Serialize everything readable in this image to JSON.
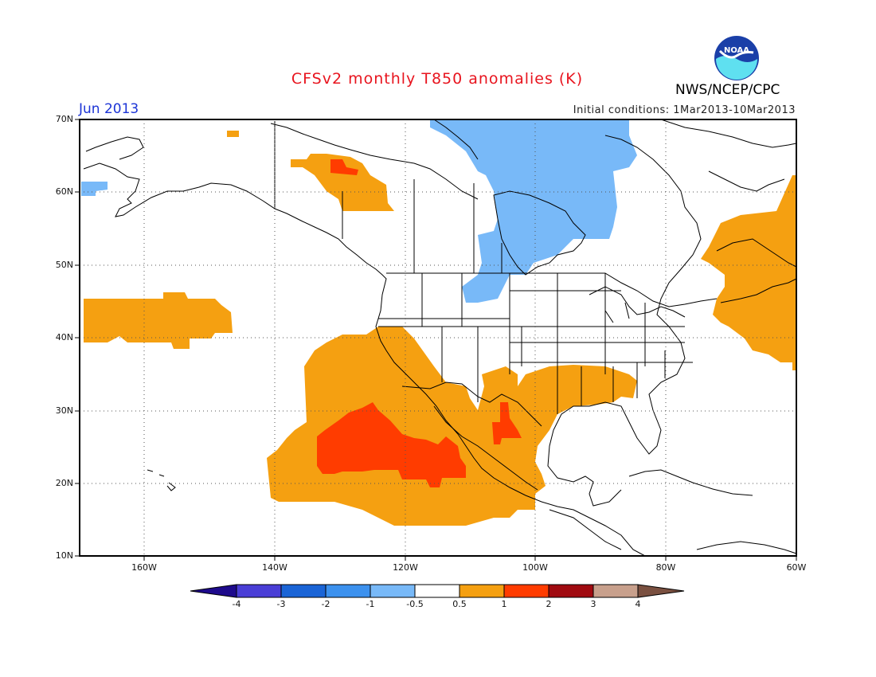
{
  "header": {
    "title": "CFSv2 monthly T850 anomalies (K)",
    "period": "Jun 2013",
    "initial_conditions": "Initial conditions: 1Mar2013-10Mar2013",
    "agency": "NWS/NCEP/CPC",
    "logo_text": "NOAA"
  },
  "map": {
    "lat_labels": [
      "70N",
      "60N",
      "50N",
      "40N",
      "30N",
      "20N",
      "10N"
    ],
    "lon_labels": [
      "160W",
      "140W",
      "120W",
      "100W",
      "80W",
      "60W"
    ]
  },
  "colorbar": {
    "labels": [
      "-4",
      "-3",
      "-2",
      "-1",
      "-0.5",
      "0.5",
      "1",
      "2",
      "3",
      "4"
    ],
    "colors": [
      "#1e0a8c",
      "#4a3ed6",
      "#1a64d6",
      "#3c91ee",
      "#78b9f8",
      "#ffffff",
      "#f5a011",
      "#ff3c00",
      "#a00a10",
      "#c8a08c",
      "#7a5040"
    ]
  },
  "colors": {
    "cool_anomaly": "#78b9f8",
    "warm_anomaly": "#f5a011",
    "strong_warm_anomaly": "#ff3c00",
    "title": "#e8141e",
    "period": "#1c34d6"
  }
}
